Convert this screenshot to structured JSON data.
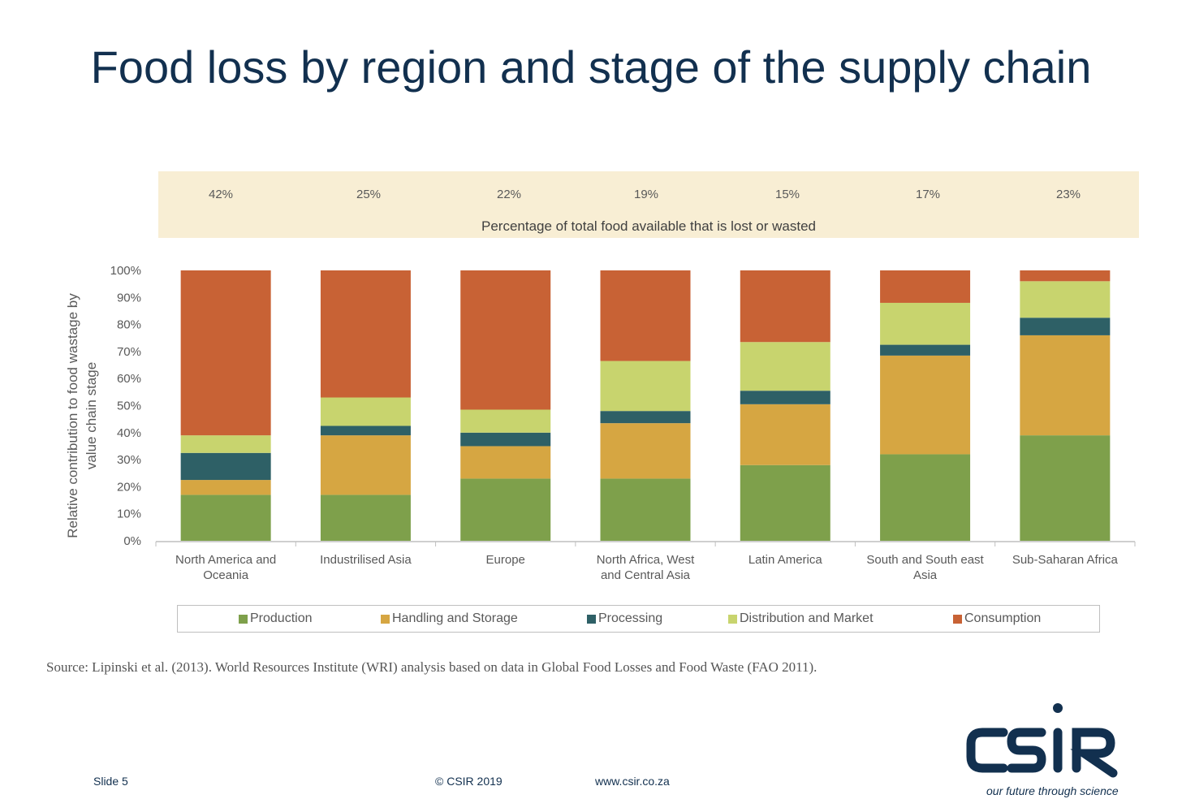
{
  "slide": {
    "title": "Food loss by region and stage of the supply chain",
    "source": "Source: Lipinski et al. (2013). World Resources Institute (WRI) analysis based on data in Global Food Losses and Food Waste (FAO 2011).",
    "footer": {
      "slide_number": "Slide 5",
      "copyright": "© CSIR  2019",
      "website": "www.csir.co.za"
    },
    "logo": {
      "name": "CSIR",
      "tagline": "our future through science",
      "color": "#12304f"
    }
  },
  "band": {
    "caption": "Percentage of total food available that is lost or wasted",
    "values": [
      "42%",
      "25%",
      "22%",
      "19%",
      "15%",
      "17%",
      "23%"
    ]
  },
  "chart_data": {
    "type": "bar",
    "stacked": true,
    "title": "Food loss by region and stage of the supply chain",
    "xlabel": "",
    "ylabel": "Relative contribution to food wastage by value chain stage",
    "ylim": [
      0,
      100
    ],
    "yticks": [
      "0%",
      "10%",
      "20%",
      "30%",
      "40%",
      "50%",
      "60%",
      "70%",
      "80%",
      "90%",
      "100%"
    ],
    "grid": false,
    "legend_position": "bottom",
    "categories": [
      "North America and Oceania",
      "Industrilised Asia",
      "Europe",
      "North Africa, West and Central Asia",
      "Latin America",
      "South and South east Asia",
      "Sub-Saharan Africa"
    ],
    "category_lines": [
      [
        "North America and",
        "Oceania"
      ],
      [
        "Industrilised Asia"
      ],
      [
        "Europe"
      ],
      [
        "North Africa, West",
        "and Central Asia"
      ],
      [
        "Latin America"
      ],
      [
        "South and South east",
        "Asia"
      ],
      [
        "Sub-Saharan Africa"
      ]
    ],
    "total_lost_or_wasted_pct": [
      42,
      25,
      22,
      19,
      15,
      17,
      23
    ],
    "series": [
      {
        "name": "Production",
        "color": "#7ea04b",
        "values": [
          17,
          17,
          23,
          23,
          28,
          32,
          39
        ]
      },
      {
        "name": "Handling and Storage",
        "color": "#d6a642",
        "values": [
          5.5,
          22,
          12,
          20.5,
          22.5,
          36.5,
          37
        ]
      },
      {
        "name": "Processing",
        "color": "#2e6066",
        "values": [
          10,
          3.5,
          5,
          4.5,
          5,
          4,
          6.5
        ]
      },
      {
        "name": "Distribution and Market",
        "color": "#c8d46e",
        "values": [
          6.5,
          10.5,
          8.5,
          18.5,
          18,
          15.5,
          13.5
        ]
      },
      {
        "name": "Consumption",
        "color": "#c86235",
        "values": [
          61,
          47,
          51.5,
          33.5,
          26.5,
          12,
          4
        ]
      }
    ]
  }
}
